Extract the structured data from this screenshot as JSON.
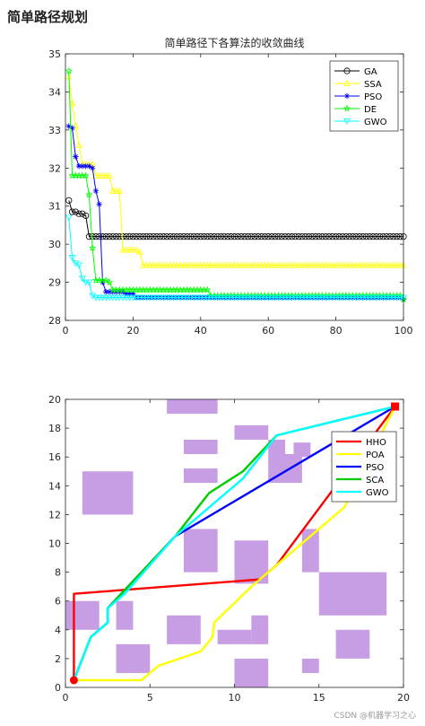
{
  "heading": "简单路径规划",
  "footer": "CSDN @机器学习之心",
  "chart_data": [
    {
      "type": "line",
      "title": "简单路径下各算法的收敛曲线",
      "xlabel": "",
      "ylabel": "",
      "xlim": [
        0,
        100
      ],
      "ylim": [
        28,
        35
      ],
      "xticks": [
        0,
        20,
        40,
        60,
        80,
        100
      ],
      "yticks": [
        28,
        29,
        30,
        31,
        32,
        33,
        34,
        35
      ],
      "grid": false,
      "legend_position": "top-right",
      "series": [
        {
          "name": "GA",
          "color": "#000000",
          "marker": "circle",
          "points": [
            [
              1,
              31.15
            ],
            [
              2,
              30.85
            ],
            [
              4,
              30.8
            ],
            [
              6,
              30.75
            ],
            [
              7,
              30.2
            ],
            [
              100,
              30.2
            ]
          ]
        },
        {
          "name": "SSA",
          "color": "#ffff00",
          "marker": "triangle-up",
          "points": [
            [
              1,
              34.4
            ],
            [
              2,
              33.7
            ],
            [
              3,
              33.1
            ],
            [
              4,
              32.6
            ],
            [
              5,
              32.1
            ],
            [
              9,
              31.8
            ],
            [
              13,
              31.8
            ],
            [
              14,
              31.4
            ],
            [
              16,
              31.4
            ],
            [
              17,
              29.85
            ],
            [
              22,
              29.8
            ],
            [
              23,
              29.45
            ],
            [
              100,
              29.45
            ]
          ]
        },
        {
          "name": "PSO",
          "color": "#0000ff",
          "marker": "asterisk",
          "points": [
            [
              1,
              33.1
            ],
            [
              2,
              33.05
            ],
            [
              3,
              32.3
            ],
            [
              4,
              32.05
            ],
            [
              8,
              32.0
            ],
            [
              9,
              31.4
            ],
            [
              10,
              31.05
            ],
            [
              11,
              29.0
            ],
            [
              12,
              28.75
            ],
            [
              18,
              28.7
            ],
            [
              21,
              28.6
            ],
            [
              100,
              28.55
            ]
          ]
        },
        {
          "name": "DE",
          "color": "#00ff00",
          "marker": "pentagram",
          "points": [
            [
              1,
              34.55
            ],
            [
              2,
              31.8
            ],
            [
              6,
              31.8
            ],
            [
              7,
              31.3
            ],
            [
              8,
              29.9
            ],
            [
              9,
              29.05
            ],
            [
              13,
              29.0
            ],
            [
              14,
              28.8
            ],
            [
              42,
              28.8
            ],
            [
              43,
              28.65
            ],
            [
              99,
              28.65
            ],
            [
              100,
              28.55
            ]
          ]
        },
        {
          "name": "GWO",
          "color": "#00ffff",
          "marker": "triangle-down",
          "points": [
            [
              1,
              30.7
            ],
            [
              2,
              29.65
            ],
            [
              3,
              29.5
            ],
            [
              4,
              29.45
            ],
            [
              5,
              29.1
            ],
            [
              6,
              29.0
            ],
            [
              8,
              28.65
            ],
            [
              9,
              28.6
            ],
            [
              100,
              28.6
            ]
          ]
        }
      ]
    },
    {
      "type": "map",
      "xlim": [
        0,
        20
      ],
      "ylim": [
        0,
        20
      ],
      "xticks": [
        0,
        5,
        10,
        15,
        20
      ],
      "yticks": [
        0,
        2,
        4,
        6,
        8,
        10,
        12,
        14,
        16,
        18,
        20
      ],
      "grid": false,
      "legend_position": "top-right",
      "obstacle_color": "#c79ee3",
      "obstacles": [
        [
          1,
          12,
          3,
          3
        ],
        [
          6,
          19,
          3,
          1
        ],
        [
          7,
          16.2,
          2,
          1
        ],
        [
          7,
          14.2,
          2,
          1
        ],
        [
          10,
          17.2,
          2,
          1
        ],
        [
          12,
          16.2,
          1,
          1
        ],
        [
          14,
          15
        ],
        [
          13.5,
          16,
          1,
          1
        ],
        [
          12,
          14.2,
          2,
          2
        ],
        [
          7,
          8,
          2,
          3
        ],
        [
          10,
          7.2,
          2,
          3
        ],
        [
          14,
          8,
          1,
          3
        ],
        [
          15,
          5,
          4,
          3
        ],
        [
          16,
          2,
          2,
          2
        ],
        [
          0,
          4,
          2,
          2
        ],
        [
          3,
          4,
          1,
          2
        ],
        [
          6,
          3,
          2,
          2
        ],
        [
          9,
          3,
          2,
          1
        ],
        [
          11,
          3,
          1,
          2
        ],
        [
          3,
          1,
          2,
          2
        ],
        [
          10,
          0,
          2,
          2
        ],
        [
          14,
          1,
          1,
          1
        ]
      ],
      "start": [
        0.5,
        0.5
      ],
      "goal": [
        19.5,
        19.5
      ],
      "series": [
        {
          "name": "HHO",
          "color": "#ff0000",
          "points": [
            [
              0.5,
              0.5
            ],
            [
              0.5,
              6.5
            ],
            [
              11.5,
              7.5
            ],
            [
              12.5,
              8.5
            ],
            [
              19.5,
              19.5
            ]
          ]
        },
        {
          "name": "POA",
          "color": "#ffff00",
          "points": [
            [
              0.5,
              0.5
            ],
            [
              4.5,
              0.5
            ],
            [
              5.5,
              1.5
            ],
            [
              8,
              2.5
            ],
            [
              8.7,
              3.5
            ],
            [
              8.8,
              4.5
            ],
            [
              11,
              7
            ],
            [
              11.9,
              7.9
            ],
            [
              12.5,
              8.5
            ],
            [
              14.5,
              10.5
            ],
            [
              16.5,
              12.5
            ],
            [
              19.5,
              19.5
            ]
          ]
        },
        {
          "name": "PSO",
          "color": "#0000ff",
          "points": [
            [
              0.5,
              0.5
            ],
            [
              1.5,
              3.5
            ],
            [
              2.5,
              4.5
            ],
            [
              2.5,
              5.5
            ],
            [
              6.5,
              10.5
            ],
            [
              19.5,
              19.5
            ]
          ]
        },
        {
          "name": "SCA",
          "color": "#00cc00",
          "points": [
            [
              0.5,
              0.5
            ],
            [
              1.5,
              3.5
            ],
            [
              2.5,
              4.5
            ],
            [
              2.5,
              5.5
            ],
            [
              6.5,
              10.5
            ],
            [
              8.5,
              13.5
            ],
            [
              10.5,
              15
            ],
            [
              12.5,
              17.5
            ],
            [
              19.5,
              19.5
            ]
          ]
        },
        {
          "name": "GWO",
          "color": "#00ffff",
          "points": [
            [
              0.5,
              0.5
            ],
            [
              1.5,
              3.5
            ],
            [
              2.5,
              4.5
            ],
            [
              2.5,
              5.5
            ],
            [
              3.5,
              6.5
            ],
            [
              6.5,
              10.5
            ],
            [
              8.5,
              12.5
            ],
            [
              10.5,
              14.5
            ],
            [
              12.5,
              17.5
            ],
            [
              19.5,
              19.5
            ]
          ]
        }
      ]
    }
  ]
}
